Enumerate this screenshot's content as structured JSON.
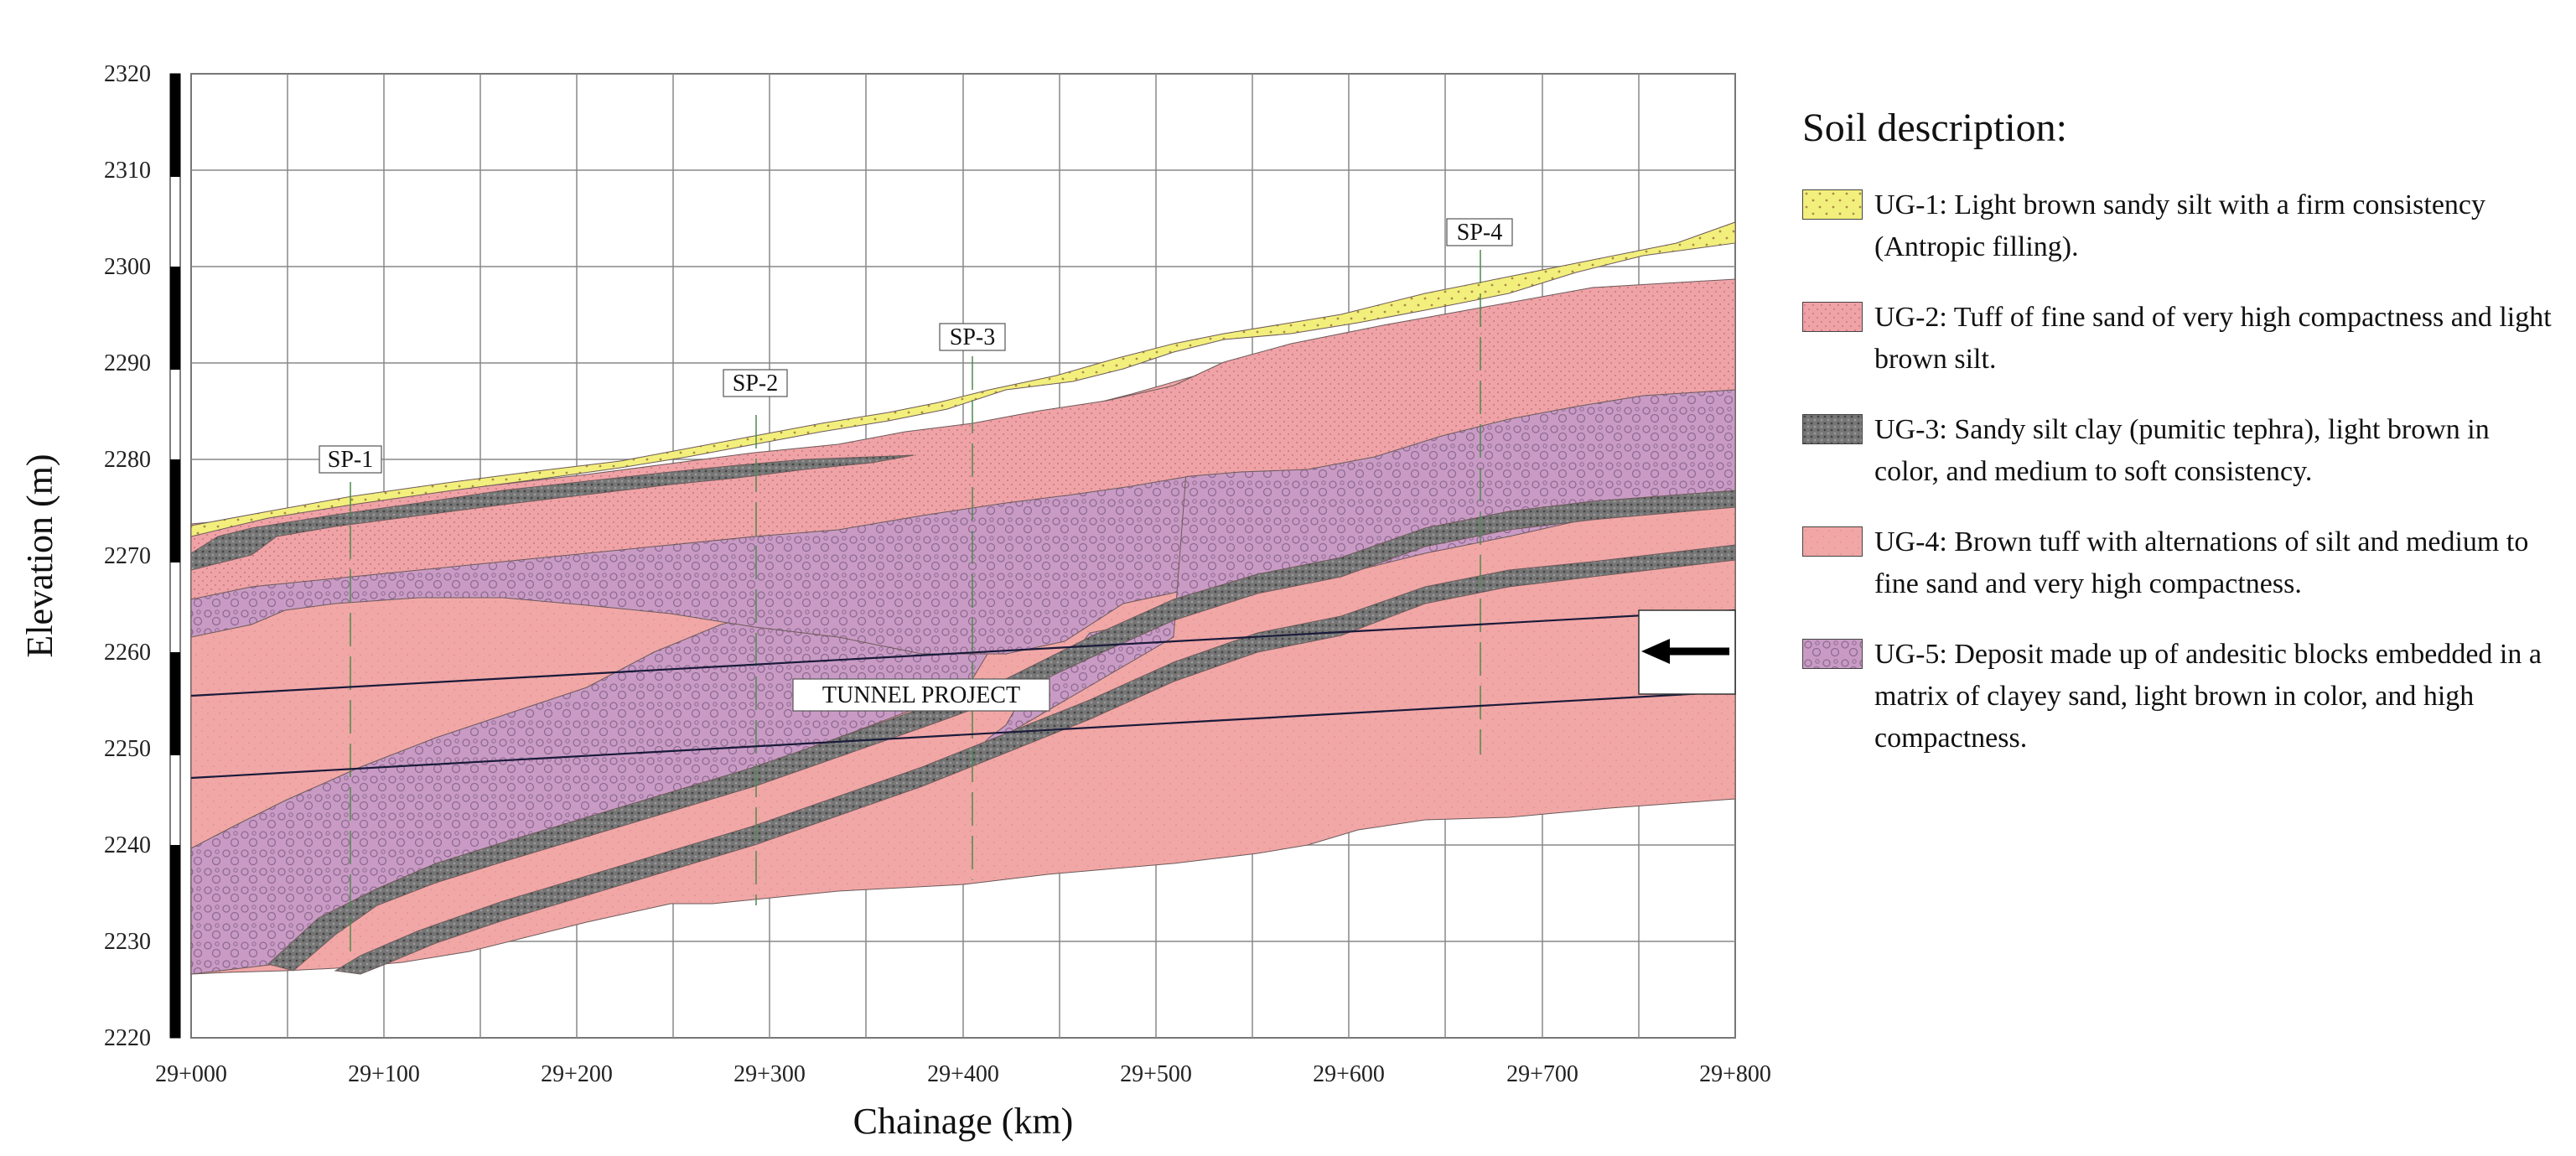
{
  "axes": {
    "y_title": "Elevation (m)",
    "x_title": "Chainage (km)",
    "y_ticks": [
      "2320",
      "2310",
      "2300",
      "2290",
      "2280",
      "2270",
      "2260",
      "2250",
      "2240",
      "2230",
      "2220"
    ],
    "x_ticks": [
      "29+000",
      "29+100",
      "29+200",
      "29+300",
      "29+400",
      "29+500",
      "29+600",
      "29+700",
      "29+800"
    ]
  },
  "sections": [
    {
      "label": "SP-1"
    },
    {
      "label": "SP-2"
    },
    {
      "label": "SP-3"
    },
    {
      "label": "SP-4"
    }
  ],
  "tunnel": {
    "label": "TUNNEL PROJECT"
  },
  "legend": {
    "title": "Soil description:",
    "items": [
      {
        "code": "UG-1",
        "text": "UG-1: Light brown sandy silt with a firm consistency (Antropic filling).",
        "color": "#f3ef7c"
      },
      {
        "code": "UG-2",
        "text": "UG-2: Tuff of fine sand of very high compactness and light brown silt.",
        "color": "#efa3a7"
      },
      {
        "code": "UG-3",
        "text": "UG-3: Sandy silt clay (pumitic tephra), light brown in color, and medium to soft consistency.",
        "color": "#6e6e6e"
      },
      {
        "code": "UG-4",
        "text": "UG-4: Brown tuff with alternations of silt and medium to fine sand and very high compactness.",
        "color": "#f1a7a6"
      },
      {
        "code": "UG-5",
        "text": "UG-5: Deposit made up of andesitic blocks embedded in a matrix of clayey sand, light brown in color, and high compactness.",
        "color": "#c99bc4"
      }
    ]
  }
}
